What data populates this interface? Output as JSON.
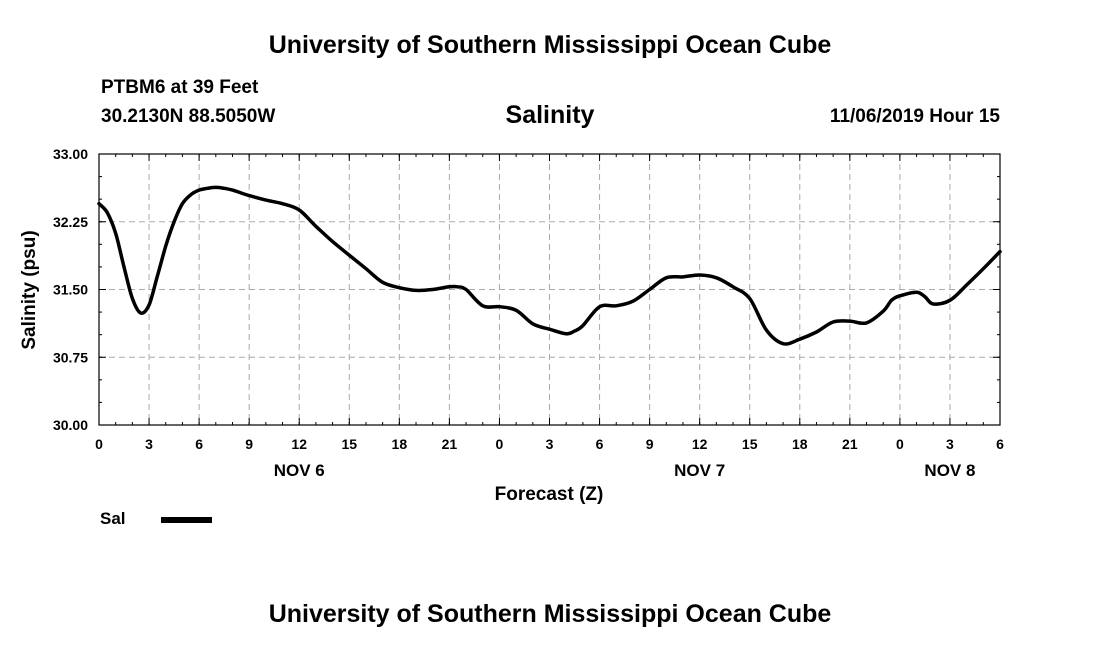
{
  "header": {
    "top_title": "University of Southern Mississippi Ocean Cube",
    "bottom_title": "University of Southern Mississippi Ocean Cube",
    "station": "PTBM6 at 39 Feet",
    "coordinates": "30.2130N 88.5050W",
    "variable": "Salinity",
    "datetime": "11/06/2019 Hour 15"
  },
  "legend": {
    "label": "Sal"
  },
  "chart_data": {
    "type": "line",
    "title": "Salinity",
    "xlabel": "Forecast (Z)",
    "ylabel": "Salinity (psu)",
    "ylim": [
      30.0,
      33.0
    ],
    "yticks": [
      "30.00",
      "30.75",
      "31.50",
      "32.25",
      "33.00"
    ],
    "xlim": [
      0,
      54
    ],
    "xtick_hours": [
      0,
      3,
      6,
      9,
      12,
      15,
      18,
      21,
      24,
      27,
      30,
      33,
      36,
      39,
      42,
      45,
      48,
      51,
      54
    ],
    "xtick_labels": [
      "0",
      "3",
      "6",
      "9",
      "12",
      "15",
      "18",
      "21",
      "0",
      "3",
      "6",
      "9",
      "12",
      "15",
      "18",
      "21",
      "0",
      "3",
      "6"
    ],
    "date_labels": [
      {
        "hour": 12,
        "label": "NOV 6"
      },
      {
        "hour": 36,
        "label": "NOV 7"
      },
      {
        "hour": 51,
        "label": "NOV 8"
      }
    ],
    "grid": true,
    "series": [
      {
        "name": "Sal",
        "color": "#000000",
        "x": [
          0,
          0.5,
          1,
          1.5,
          2,
          2.5,
          3,
          3.5,
          4,
          4.5,
          5,
          5.5,
          6,
          6.5,
          7,
          7.5,
          8,
          9,
          10,
          11,
          12,
          13,
          14,
          15,
          16,
          17,
          18,
          19,
          20,
          21,
          21.5,
          22,
          23,
          24,
          25,
          26,
          27,
          28,
          28.5,
          29,
          30,
          31,
          32,
          33,
          34,
          35,
          36,
          37,
          38,
          39,
          40,
          41,
          42,
          43,
          44,
          45,
          46,
          47,
          47.5,
          48,
          49,
          49.5,
          50,
          51,
          52,
          53,
          54
        ],
        "values": [
          32.45,
          32.35,
          32.12,
          31.75,
          31.4,
          31.24,
          31.33,
          31.65,
          31.98,
          32.25,
          32.45,
          32.55,
          32.6,
          32.62,
          32.63,
          32.62,
          32.6,
          32.54,
          32.49,
          32.45,
          32.38,
          32.2,
          32.03,
          31.88,
          31.73,
          31.58,
          31.52,
          31.49,
          31.5,
          31.53,
          31.53,
          31.5,
          31.32,
          31.31,
          31.27,
          31.12,
          31.06,
          31.01,
          31.04,
          31.1,
          31.31,
          31.32,
          31.37,
          31.5,
          31.63,
          31.64,
          31.66,
          31.63,
          31.53,
          31.4,
          31.05,
          30.9,
          30.95,
          31.03,
          31.14,
          31.15,
          31.13,
          31.26,
          31.38,
          31.43,
          31.47,
          31.42,
          31.34,
          31.38,
          31.55,
          31.73,
          31.92
        ]
      }
    ]
  }
}
